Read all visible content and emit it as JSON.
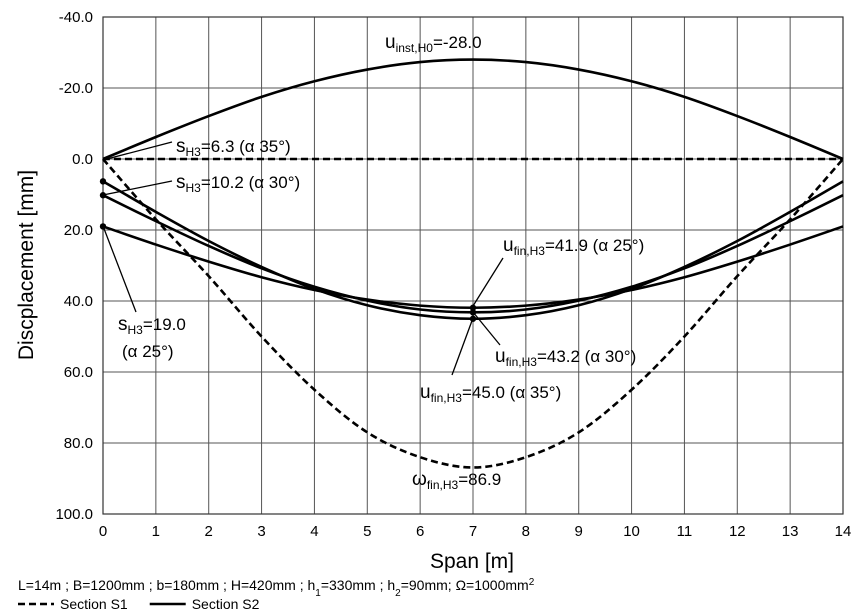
{
  "chart_data": {
    "type": "line",
    "x_label": "Span [m]",
    "y_label": "Discplacement [mm]",
    "x": [
      0,
      1,
      2,
      3,
      4,
      5,
      6,
      7,
      8,
      9,
      10,
      11,
      12,
      13,
      14
    ],
    "xlim": [
      0,
      14
    ],
    "xticks": [
      0,
      1,
      2,
      3,
      4,
      5,
      6,
      7,
      8,
      9,
      10,
      11,
      12,
      13,
      14
    ],
    "ylim": [
      -40,
      100
    ],
    "y_inverted": true,
    "yticks": [
      {
        "value": -40,
        "label": "-40.0"
      },
      {
        "value": -20,
        "label": "-20.0"
      },
      {
        "value": 0,
        "label": "0.0"
      },
      {
        "value": 20,
        "label": "20.0"
      },
      {
        "value": 40,
        "label": "40.0"
      },
      {
        "value": 60,
        "label": "60.0"
      },
      {
        "value": 80,
        "label": "80.0"
      },
      {
        "value": 100,
        "label": "100.0"
      }
    ],
    "grid": true,
    "color": "#000000",
    "legend": [
      {
        "label": "Section S1",
        "dash": "dashed"
      },
      {
        "label": "Section S2",
        "dash": "solid"
      }
    ],
    "series": [
      {
        "dash": "dashed",
        "values": [
          0,
          0,
          0,
          0,
          0,
          0,
          0,
          0,
          0,
          0,
          0,
          0,
          0,
          0,
          0
        ]
      },
      {
        "dash": "dashed",
        "values": [
          0,
          17,
          33,
          50,
          65,
          77,
          84,
          86.9,
          84,
          77,
          65,
          50,
          33,
          17,
          0
        ]
      },
      {
        "dash": "solid",
        "values": [
          0,
          -6.2,
          -12.1,
          -17.5,
          -21.9,
          -25.2,
          -27.3,
          -28.0,
          -27.3,
          -25.2,
          -21.9,
          -17.5,
          -12.1,
          -6.2,
          0
        ]
      },
      {
        "dash": "solid",
        "values": [
          6.3,
          14.9,
          23.1,
          30.4,
          36.6,
          41.2,
          44.0,
          45.0,
          44.0,
          41.2,
          36.6,
          30.4,
          23.1,
          14.9,
          6.3
        ]
      },
      {
        "dash": "solid",
        "values": [
          10.2,
          17.5,
          24.5,
          30.8,
          36.0,
          39.9,
          42.4,
          43.2,
          42.4,
          39.9,
          36.0,
          30.8,
          24.5,
          17.5,
          10.2
        ]
      },
      {
        "dash": "solid",
        "values": [
          19.0,
          24.1,
          28.9,
          33.3,
          36.9,
          39.6,
          41.3,
          41.9,
          41.3,
          39.6,
          36.9,
          33.3,
          28.9,
          24.1,
          19.0
        ]
      }
    ],
    "annotations": [
      {
        "symbol": "u",
        "sub": "inst,H0",
        "text": "=-28.0"
      },
      {
        "symbol": "s",
        "sub": "H3",
        "text": "=6.3 (α 35°)"
      },
      {
        "symbol": "s",
        "sub": "H3",
        "text": "=10.2 (α 30°)"
      },
      {
        "symbol": "s",
        "sub": "H3",
        "text": "=19.0",
        "line2": "(α 25°)"
      },
      {
        "symbol": "u",
        "sub": "fin,H3",
        "text": "=41.9 (α 25°)"
      },
      {
        "symbol": "u",
        "sub": "fin,H3",
        "text": "=43.2 (α 30°)"
      },
      {
        "symbol": "u",
        "sub": "fin,H3",
        "text": "=45.0 (α 35°)"
      },
      {
        "symbol": "ω",
        "sub": "fin,H3",
        "text": "=86.9"
      }
    ],
    "footnote": [
      {
        "t": "L=14m ; B=1200mm ; b=180mm ; H=420mm ; h"
      },
      {
        "sub": "1"
      },
      {
        "t": "=330mm ; h"
      },
      {
        "sub": "2"
      },
      {
        "t": "=90mm; Ω=1000mm"
      },
      {
        "sup": "2"
      }
    ]
  }
}
